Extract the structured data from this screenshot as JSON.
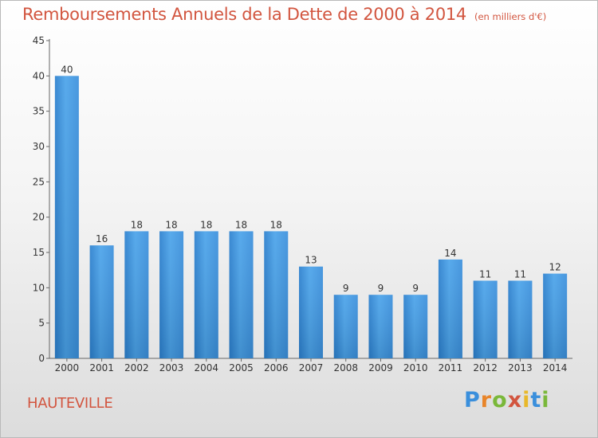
{
  "chart_data": {
    "type": "bar",
    "title": "Remboursements Annuels de la Dette de 2000 à 2014",
    "unit": "(en milliers d'€)",
    "categories": [
      "2000",
      "2001",
      "2002",
      "2003",
      "2004",
      "2005",
      "2006",
      "2007",
      "2008",
      "2009",
      "2010",
      "2011",
      "2012",
      "2013",
      "2014"
    ],
    "values": [
      40,
      16,
      18,
      18,
      18,
      18,
      18,
      13,
      9,
      9,
      9,
      14,
      11,
      11,
      12
    ],
    "ylim": [
      0,
      45
    ],
    "yticks": [
      0,
      5,
      10,
      15,
      20,
      25,
      30,
      35,
      40,
      45
    ],
    "xlabel": "",
    "ylabel": "",
    "grid": false,
    "bar_color": "#3b8fdc"
  },
  "footer": {
    "place": "HAUTEVILLE",
    "logo": "Proxiti"
  }
}
